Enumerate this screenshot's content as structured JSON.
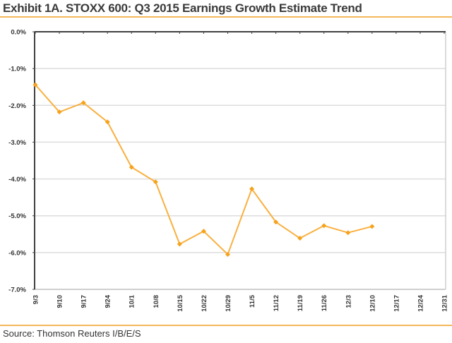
{
  "header": {
    "title": "Exhibit 1A.  STOXX 600: Q3 2015 Earnings Growth Estimate Trend"
  },
  "footer": {
    "source": "Source: Thomson Reuters I/B/E/S"
  },
  "colors": {
    "line": "#F9B040",
    "marker": "#F7A21B",
    "accent_rule": "#F4B85A",
    "grid": "#DDDDDD",
    "axis": "#404040",
    "frame": "#CFCFCF"
  },
  "chart_data": {
    "type": "line",
    "title": "Exhibit 1A.  STOXX 600: Q3 2015 Earnings Growth Estimate Trend",
    "xlabel": "",
    "ylabel": "",
    "categories": [
      "9/3",
      "9/10",
      "9/17",
      "9/24",
      "10/1",
      "10/8",
      "10/15",
      "10/22",
      "10/29",
      "11/5",
      "11/12",
      "11/19",
      "11/26",
      "12/3",
      "12/10",
      "12/17",
      "12/24",
      "12/31"
    ],
    "series": [
      {
        "name": "Q3 2015 Earnings Growth Estimate",
        "values": [
          -1.44,
          -2.18,
          -1.93,
          -2.45,
          -3.68,
          -4.08,
          -5.77,
          -5.42,
          -6.05,
          -4.27,
          -5.17,
          -5.61,
          -5.27,
          -5.46,
          -5.29,
          null,
          null,
          null
        ]
      }
    ],
    "ylim": [
      -7.0,
      0.0
    ],
    "yticks": [
      0,
      -1,
      -2,
      -3,
      -4,
      -5,
      -6,
      -7
    ],
    "ytick_labels": [
      "0.0%",
      "-1.0%",
      "-2.0%",
      "-3.0%",
      "-4.0%",
      "-5.0%",
      "-6.0%",
      "-7.0%"
    ],
    "x_axis_position": "top",
    "xtick_rotation": "vertical",
    "grid": true,
    "legend": "none",
    "marker": "diamond"
  }
}
